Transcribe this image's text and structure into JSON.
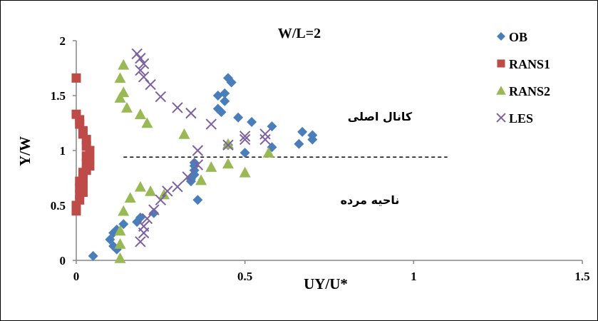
{
  "chart_data": {
    "type": "scatter",
    "title": "W/L=2",
    "xlabel": "UY/U*",
    "ylabel": "Y/W",
    "xlim": [
      0,
      1.5
    ],
    "ylim": [
      0,
      2
    ],
    "x_ticks": [
      "0",
      "0.5",
      "1",
      "1.5"
    ],
    "y_ticks": [
      "0",
      "0.5",
      "1",
      "1.5",
      "2"
    ],
    "grid": false,
    "legend_position": "top-right",
    "annotations": [
      {
        "text": "کانال اصلی",
        "x": 0.83,
        "y": 1.3
      },
      {
        "text": "ناحیه مرده",
        "x": 0.82,
        "y": 0.56
      }
    ],
    "reference_line": {
      "style": "dashed",
      "y": 0.94,
      "x_range": [
        0.14,
        1.1
      ]
    },
    "series": [
      {
        "name": "OB",
        "marker": "diamond",
        "color": "#4a7ebb",
        "points": [
          [
            0.05,
            0.04
          ],
          [
            0.1,
            0.19
          ],
          [
            0.11,
            0.13
          ],
          [
            0.11,
            0.25
          ],
          [
            0.12,
            0.1
          ],
          [
            0.12,
            0.28
          ],
          [
            0.14,
            0.33
          ],
          [
            0.18,
            0.35
          ],
          [
            0.19,
            0.39
          ],
          [
            0.23,
            0.43
          ],
          [
            0.34,
            0.72
          ],
          [
            0.34,
            0.74
          ],
          [
            0.35,
            0.78
          ],
          [
            0.35,
            0.82
          ],
          [
            0.35,
            0.86
          ],
          [
            0.35,
            0.89
          ],
          [
            0.36,
            0.55
          ],
          [
            0.42,
            1.38
          ],
          [
            0.42,
            1.5
          ],
          [
            0.43,
            1.35
          ],
          [
            0.44,
            1.45
          ],
          [
            0.44,
            1.52
          ],
          [
            0.45,
            1.05
          ],
          [
            0.45,
            1.66
          ],
          [
            0.46,
            1.62
          ],
          [
            0.48,
            1.3
          ],
          [
            0.5,
            0.98
          ],
          [
            0.52,
            1.26
          ],
          [
            0.58,
            1.03
          ],
          [
            0.58,
            1.22
          ],
          [
            0.66,
            1.06
          ],
          [
            0.67,
            1.17
          ],
          [
            0.7,
            1.1
          ],
          [
            0.7,
            1.14
          ]
        ]
      },
      {
        "name": "RANS1",
        "marker": "square",
        "color": "#be4b48",
        "points": [
          [
            0.0,
            1.66
          ],
          [
            0.0,
            1.33
          ],
          [
            0.0,
            0.5
          ],
          [
            0.0,
            0.45
          ],
          [
            0.01,
            1.28
          ],
          [
            0.01,
            1.24
          ],
          [
            0.01,
            0.72
          ],
          [
            0.01,
            0.66
          ],
          [
            0.01,
            0.6
          ],
          [
            0.01,
            0.55
          ],
          [
            0.02,
            1.18
          ],
          [
            0.02,
            1.15
          ],
          [
            0.02,
            0.8
          ],
          [
            0.02,
            0.75
          ],
          [
            0.02,
            0.7
          ],
          [
            0.02,
            0.62
          ],
          [
            0.03,
            1.1
          ],
          [
            0.03,
            1.04
          ],
          [
            0.03,
            0.95
          ],
          [
            0.03,
            0.88
          ],
          [
            0.03,
            0.82
          ],
          [
            0.04,
            1.0
          ],
          [
            0.04,
            0.92
          ],
          [
            0.04,
            0.86
          ]
        ]
      },
      {
        "name": "RANS2",
        "marker": "triangle",
        "color": "#98b954",
        "points": [
          [
            0.13,
            0.02
          ],
          [
            0.13,
            0.15
          ],
          [
            0.13,
            0.27
          ],
          [
            0.13,
            1.48
          ],
          [
            0.13,
            1.66
          ],
          [
            0.14,
            1.78
          ],
          [
            0.14,
            1.53
          ],
          [
            0.14,
            0.45
          ],
          [
            0.15,
            1.39
          ],
          [
            0.16,
            0.57
          ],
          [
            0.19,
            0.67
          ],
          [
            0.19,
            1.33
          ],
          [
            0.21,
            1.25
          ],
          [
            0.22,
            0.63
          ],
          [
            0.26,
            0.6
          ],
          [
            0.32,
            1.15
          ],
          [
            0.37,
            0.73
          ],
          [
            0.4,
            0.85
          ],
          [
            0.45,
            1.06
          ],
          [
            0.45,
            0.88
          ],
          [
            0.5,
            0.8
          ],
          [
            0.57,
            0.98
          ]
        ]
      },
      {
        "name": "LES",
        "marker": "x",
        "color": "#7d60a0",
        "points": [
          [
            0.19,
            0.17
          ],
          [
            0.2,
            0.25
          ],
          [
            0.2,
            0.31
          ],
          [
            0.21,
            0.38
          ],
          [
            0.23,
            0.46
          ],
          [
            0.25,
            0.55
          ],
          [
            0.27,
            0.63
          ],
          [
            0.3,
            0.67
          ],
          [
            0.33,
            0.76
          ],
          [
            0.36,
            0.87
          ],
          [
            0.36,
            1.0
          ],
          [
            0.18,
            1.88
          ],
          [
            0.19,
            1.84
          ],
          [
            0.2,
            1.79
          ],
          [
            0.19,
            1.73
          ],
          [
            0.2,
            1.67
          ],
          [
            0.22,
            1.6
          ],
          [
            0.25,
            1.49
          ],
          [
            0.3,
            1.39
          ],
          [
            0.34,
            1.34
          ],
          [
            0.4,
            1.24
          ],
          [
            0.45,
            1.05
          ],
          [
            0.5,
            1.13
          ],
          [
            0.5,
            1.1
          ],
          [
            0.56,
            1.1
          ],
          [
            0.56,
            1.15
          ]
        ]
      }
    ]
  }
}
